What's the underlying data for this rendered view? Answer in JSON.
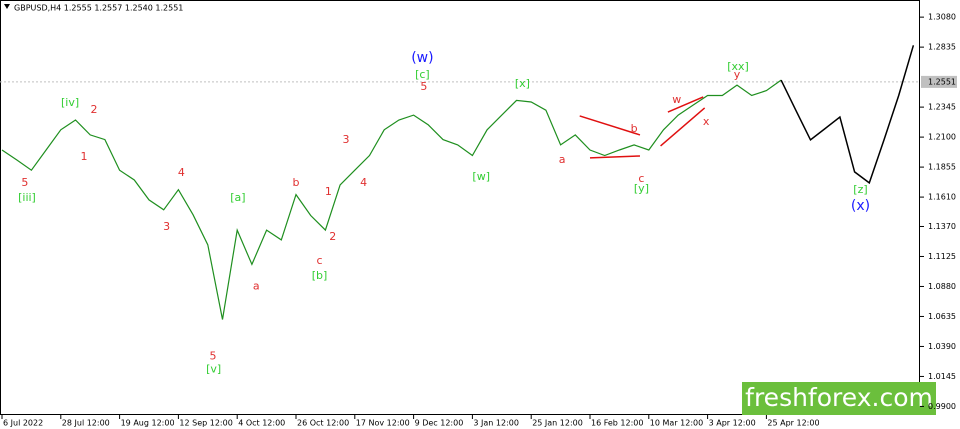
{
  "chart_data": {
    "type": "line",
    "header": "GBPUSD,H4  1.2555 1.2557 1.2540 1.2551",
    "categories": [
      "6 Jul 2022",
      null,
      null,
      null,
      "28 Jul 12:00",
      null,
      null,
      null,
      "19 Aug 12:00",
      null,
      null,
      null,
      "12 Sep 12:00",
      null,
      null,
      null,
      "4 Oct 12:00",
      null,
      null,
      null,
      "26 Oct 12:00",
      null,
      null,
      null,
      "17 Nov 12:00",
      null,
      null,
      null,
      "9 Dec 12:00",
      null,
      null,
      null,
      "3 Jan 12:00",
      null,
      null,
      null,
      "25 Jan 12:00",
      null,
      null,
      null,
      "16 Feb 12:00",
      null,
      null,
      null,
      "10 Mar 12:00",
      null,
      null,
      null,
      "3 Apr 12:00",
      null,
      null,
      null,
      "25 Apr 12:00",
      null,
      null,
      null,
      null,
      null,
      null,
      null,
      null,
      null,
      null
    ],
    "series": [
      {
        "color": "#1f8f1f",
        "values": [
          1.1995,
          1.1914,
          1.183,
          1.1995,
          1.216,
          1.224,
          1.2118,
          1.208,
          1.183,
          1.175,
          1.1587,
          1.1506,
          1.167,
          1.1465,
          1.122,
          1.061,
          1.134,
          1.106,
          1.134,
          1.126,
          1.163,
          1.146,
          1.134,
          1.171,
          1.183,
          1.195,
          1.216,
          1.224,
          1.228,
          1.22,
          1.208,
          1.2036,
          1.195,
          1.216,
          1.228,
          1.24,
          1.2387,
          1.232,
          1.2036,
          1.2118,
          1.1995,
          1.195,
          1.1995,
          1.2036,
          1.1995,
          1.216,
          1.228,
          1.236,
          1.244,
          1.244,
          1.2525,
          1.244,
          1.248,
          1.2566,
          null,
          null,
          null,
          null,
          null,
          null,
          null,
          null,
          null
        ]
      },
      {
        "color": "#000000",
        "values": [
          null,
          null,
          null,
          null,
          null,
          null,
          null,
          null,
          null,
          null,
          null,
          null,
          null,
          null,
          null,
          null,
          null,
          null,
          null,
          null,
          null,
          null,
          null,
          null,
          null,
          null,
          null,
          null,
          null,
          null,
          null,
          null,
          null,
          null,
          null,
          null,
          null,
          null,
          null,
          null,
          null,
          null,
          null,
          null,
          null,
          null,
          null,
          null,
          null,
          null,
          null,
          null,
          null,
          1.2566,
          1.232,
          1.2077,
          1.217,
          1.2264,
          1.1816,
          1.1726,
          1.2077,
          1.244,
          1.285
        ]
      }
    ],
    "ylim": [
      0.983,
      1.322
    ],
    "yticks": [
      {
        "value": 1.308,
        "label": "1.3080"
      },
      1.2835,
      1.2345,
      {
        "value": 1.21,
        "label": "1.2100"
      },
      1.1855,
      {
        "value": 1.161,
        "label": "1.1610"
      },
      {
        "value": 1.137,
        "label": "1.1370"
      },
      1.1125,
      {
        "value": 1.088,
        "label": "1.0880"
      },
      1.0635,
      {
        "value": 1.039,
        "label": "1.0390"
      },
      1.0145,
      {
        "value": 0.99,
        "label": "0.9900"
      }
    ],
    "current_price": 1.2551,
    "annotations": [
      {
        "text": "5",
        "color": "#e03030",
        "x": 1.56,
        "y": 1.1726
      },
      {
        "text": "[iii]",
        "color": "#32cd32",
        "x": 1.7,
        "y": 1.1604
      },
      {
        "text": "[iv]",
        "color": "#32cd32",
        "x": 4.63,
        "y": 1.2378
      },
      {
        "text": "2",
        "color": "#e03030",
        "x": 6.26,
        "y": 1.2321
      },
      {
        "text": "1",
        "color": "#e03030",
        "x": 5.58,
        "y": 1.1938
      },
      {
        "text": "3",
        "color": "#e03030",
        "x": 11.2,
        "y": 1.1367
      },
      {
        "text": "4",
        "color": "#e03030",
        "x": 12.2,
        "y": 1.1808
      },
      {
        "text": "5",
        "color": "#e03030",
        "x": 14.35,
        "y": 1.0307
      },
      {
        "text": "[v]",
        "color": "#32cd32",
        "x": 14.4,
        "y": 1.0201
      },
      {
        "text": "[a]",
        "color": "#32cd32",
        "x": 16.05,
        "y": 1.1604
      },
      {
        "text": "a",
        "color": "#e03030",
        "x": 17.3,
        "y": 1.0878
      },
      {
        "text": "b",
        "color": "#e03030",
        "x": 20,
        "y": 1.1726
      },
      {
        "text": "c",
        "color": "#e03030",
        "x": 21.6,
        "y": 1.109
      },
      {
        "text": "[b]",
        "color": "#32cd32",
        "x": 21.6,
        "y": 1.0967
      },
      {
        "text": "1",
        "color": "#e03030",
        "x": 22.2,
        "y": 1.1653
      },
      {
        "text": "2",
        "color": "#e03030",
        "x": 22.5,
        "y": 1.1286
      },
      {
        "text": "3",
        "color": "#e03030",
        "x": 23.4,
        "y": 1.2077
      },
      {
        "text": "4",
        "color": "#e03030",
        "x": 24.6,
        "y": 1.1726
      },
      {
        "text": "(w)",
        "color": "#1a1aff",
        "x": 28.6,
        "y": 1.2746
      },
      {
        "text": "[c]",
        "color": "#32cd32",
        "x": 28.6,
        "y": 1.2607
      },
      {
        "text": "5",
        "color": "#e03030",
        "x": 28.7,
        "y": 1.2509
      },
      {
        "text": "[x]",
        "color": "#32cd32",
        "x": 35.4,
        "y": 1.2533
      },
      {
        "text": "[w]",
        "color": "#32cd32",
        "x": 32.6,
        "y": 1.1775
      },
      {
        "text": "a",
        "color": "#e03030",
        "x": 38.1,
        "y": 1.1914
      },
      {
        "text": "b",
        "color": "#e03030",
        "x": 43,
        "y": 1.2167
      },
      {
        "text": "c",
        "color": "#e03030",
        "x": 43.5,
        "y": 1.1759
      },
      {
        "text": "[y]",
        "color": "#32cd32",
        "x": 43.5,
        "y": 1.1677
      },
      {
        "text": "w",
        "color": "#e03030",
        "x": 45.9,
        "y": 1.2403
      },
      {
        "text": "x",
        "color": "#e03030",
        "x": 47.9,
        "y": 1.2224
      },
      {
        "text": "[xx]",
        "color": "#32cd32",
        "x": 50.07,
        "y": 1.2672
      },
      {
        "text": "y",
        "color": "#e03030",
        "x": 50,
        "y": 1.2607
      },
      {
        "text": "[z]",
        "color": "#32cd32",
        "x": 58.4,
        "y": 1.1669
      },
      {
        "text": "(x)",
        "color": "#1a1aff",
        "x": 58.4,
        "y": 1.1538
      }
    ],
    "trend_lines": {
      "color": "#e01010",
      "lines": [
        [
          [
            39.3,
            1.2273
          ],
          [
            43.4,
            1.2118
          ]
        ],
        [
          [
            40,
            1.193
          ],
          [
            43.4,
            1.1946
          ]
        ],
        [
          [
            45.3,
            1.2305
          ],
          [
            47.7,
            1.2428
          ]
        ],
        [
          [
            44.8,
            1.2028
          ],
          [
            47.8,
            1.2338
          ]
        ]
      ]
    },
    "watermark": "freshforex.com"
  }
}
